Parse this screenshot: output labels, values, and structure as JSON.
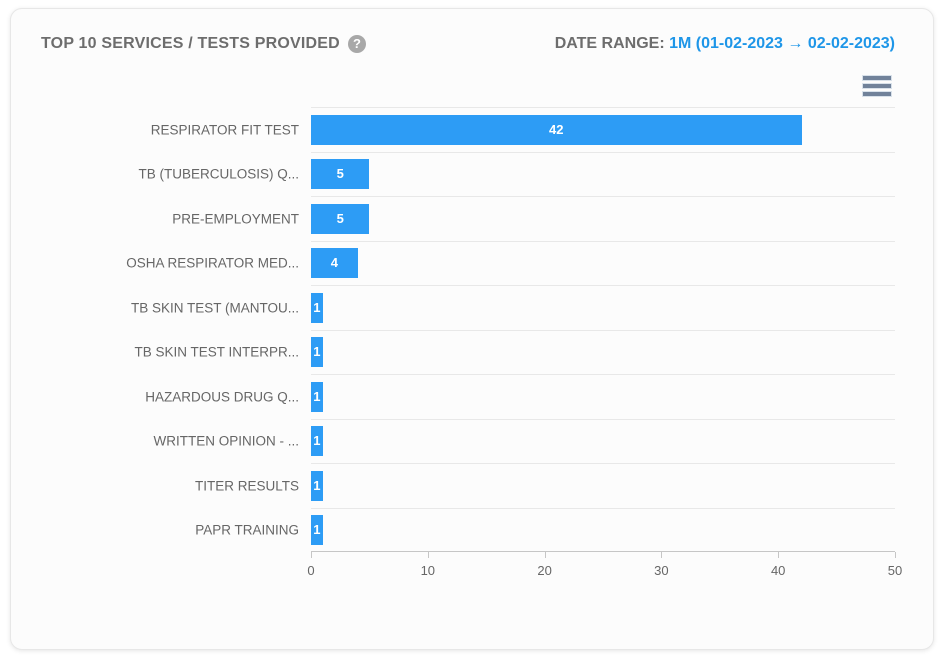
{
  "card": {
    "title": "TOP 10 SERVICES / TESTS PROVIDED",
    "help_glyph": "?",
    "date_range_label": "DATE RANGE:",
    "date_range_value": "1M (01-02-2023 → 02-02-2023)"
  },
  "colors": {
    "bar": "#2d9cf5",
    "date_text": "#1e96e8",
    "title_text": "#6d6d6d",
    "axis_text": "#666666",
    "grid_line": "#e8e8e8"
  },
  "chart_data": {
    "type": "bar",
    "orientation": "horizontal",
    "title": "TOP 10 SERVICES / TESTS PROVIDED",
    "categories": [
      "RESPIRATOR FIT TEST",
      "TB (TUBERCULOSIS) Q...",
      "PRE-EMPLOYMENT",
      "OSHA RESPIRATOR MED...",
      "TB SKIN TEST (MANTOU...",
      "TB SKIN TEST INTERPR...",
      "HAZARDOUS DRUG Q...",
      "WRITTEN OPINION - ...",
      "TITER RESULTS",
      "PAPR TRAINING"
    ],
    "values": [
      42,
      5,
      5,
      4,
      1,
      1,
      1,
      1,
      1,
      1
    ],
    "xlabel": "",
    "ylabel": "",
    "xlim": [
      0,
      50
    ],
    "x_ticks": [
      0,
      10,
      20,
      30,
      40,
      50
    ],
    "grid": "horizontal category separators only",
    "legend": "none",
    "data_labels": "white bold, centered inside bars"
  }
}
